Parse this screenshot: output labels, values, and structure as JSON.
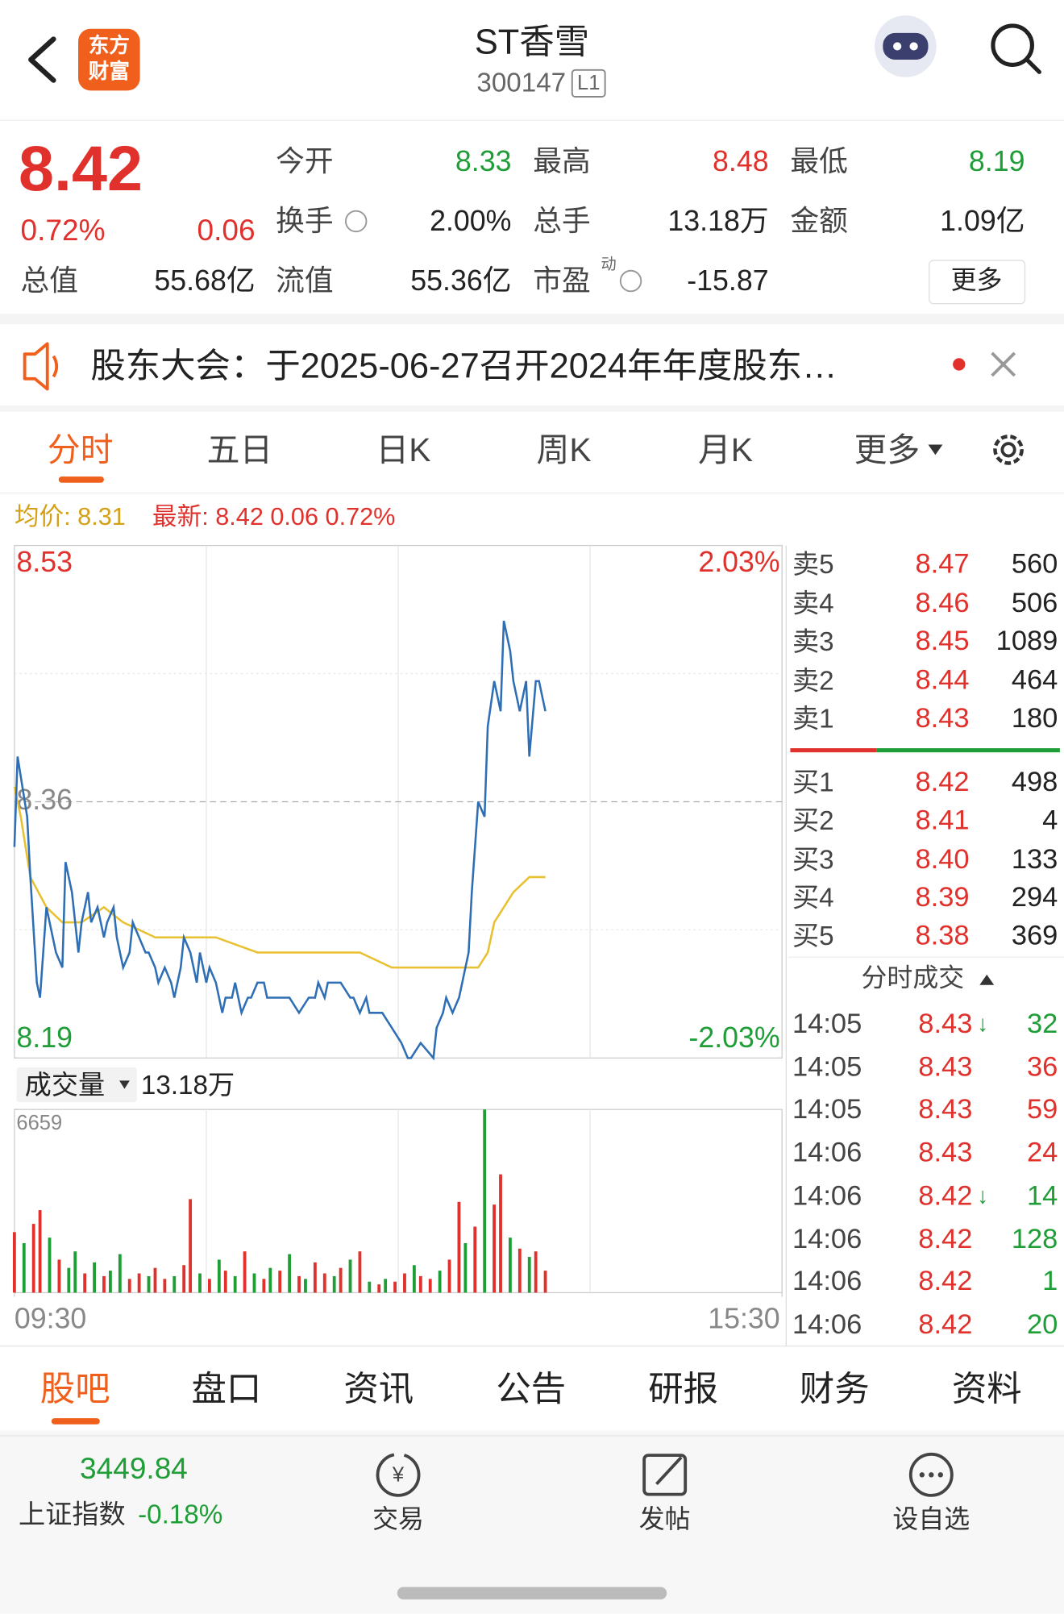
{
  "header": {
    "logo_line1": "东方",
    "logo_line2": "财富",
    "title": "ST香雪",
    "code": "300147",
    "level": "L1"
  },
  "quote": {
    "price": "8.42",
    "change_pct": "0.72%",
    "change": "0.06",
    "fields": [
      {
        "label": "今开",
        "value": "8.33"
      },
      {
        "label": "最高",
        "value": "8.48"
      },
      {
        "label": "最低",
        "value": "8.19"
      },
      {
        "label": "换手",
        "value": "2.00%"
      },
      {
        "label": "总手",
        "value": "13.18万"
      },
      {
        "label": "金额",
        "value": "1.09亿"
      },
      {
        "label": "总值",
        "value": "55.68亿"
      },
      {
        "label": "流值",
        "value": "55.36亿"
      },
      {
        "label": "市盈",
        "superscript": "动",
        "value": "-15.87"
      }
    ],
    "more_button": "更多"
  },
  "notice": {
    "text": "股东大会：于2025-06-27召开2024年年度股东…"
  },
  "tabs": [
    "分时",
    "五日",
    "日K",
    "周K",
    "月K",
    "更多"
  ],
  "chart_data": [
    {
      "type": "line",
      "annotations": [
        "均价: 8.31",
        "最新: 8.42 0.06 0.72%"
      ],
      "xlim": [
        0,
        240
      ],
      "ylim": [
        8.19,
        8.53
      ],
      "yticks": [
        8.19,
        8.36,
        8.53
      ],
      "y2lim": [
        -2.03,
        2.03
      ],
      "y2ticks": [
        {
          "value": -2.03,
          "label": "-2.03%"
        },
        {
          "value": 2.03,
          "label": "2.03%"
        }
      ],
      "series": [
        {
          "color": "#2e6eb5",
          "x": [
            0,
            1,
            4,
            5,
            7,
            8,
            10,
            12,
            13,
            15,
            16,
            18,
            20,
            21,
            23,
            24,
            26,
            28,
            29,
            31,
            32,
            34,
            36,
            37,
            41,
            42,
            44,
            45,
            47,
            49,
            50,
            52,
            53,
            55,
            57,
            58,
            60,
            61,
            63,
            65,
            66,
            68,
            69,
            71,
            73,
            74,
            76,
            78,
            79,
            82,
            86,
            89,
            92,
            94,
            95,
            97,
            98,
            102,
            105,
            106,
            108,
            110,
            111,
            115,
            118,
            121,
            123,
            124,
            127,
            131,
            132,
            134,
            135,
            137,
            139,
            140,
            142,
            143,
            145,
            147,
            148,
            150,
            152,
            153,
            155,
            156,
            158,
            160,
            161,
            163,
            164,
            166
          ],
          "values": [
            8.33,
            8.39,
            8.35,
            8.31,
            8.24,
            8.23,
            8.29,
            8.27,
            8.26,
            8.25,
            8.32,
            8.3,
            8.26,
            8.28,
            8.3,
            8.28,
            8.29,
            8.27,
            8.28,
            8.29,
            8.27,
            8.25,
            8.26,
            8.28,
            8.26,
            8.26,
            8.25,
            8.24,
            8.25,
            8.24,
            8.23,
            8.25,
            8.27,
            8.26,
            8.24,
            8.26,
            8.24,
            8.25,
            8.24,
            8.22,
            8.23,
            8.23,
            8.24,
            8.22,
            8.23,
            8.23,
            8.24,
            8.24,
            8.23,
            8.23,
            8.23,
            8.22,
            8.23,
            8.23,
            8.24,
            8.23,
            8.24,
            8.24,
            8.23,
            8.23,
            8.22,
            8.23,
            8.22,
            8.22,
            8.21,
            8.2,
            8.19,
            8.19,
            8.2,
            8.19,
            8.21,
            8.22,
            8.23,
            8.22,
            8.23,
            8.24,
            8.26,
            8.3,
            8.36,
            8.35,
            8.41,
            8.44,
            8.42,
            8.48,
            8.46,
            8.44,
            8.42,
            8.44,
            8.39,
            8.44,
            8.44,
            8.42
          ]
        },
        {
          "color": "#e8c030",
          "x": [
            0,
            2,
            5,
            10,
            15,
            21,
            28,
            34,
            44,
            53,
            63,
            76,
            92,
            108,
            118,
            124,
            131,
            140,
            145,
            148,
            150,
            153,
            156,
            161,
            166
          ],
          "values": [
            8.37,
            8.35,
            8.31,
            8.29,
            8.28,
            8.28,
            8.29,
            8.28,
            8.27,
            8.27,
            8.27,
            8.26,
            8.26,
            8.26,
            8.25,
            8.25,
            8.25,
            8.25,
            8.25,
            8.26,
            8.28,
            8.29,
            8.3,
            8.31,
            8.31
          ]
        }
      ]
    },
    {
      "type": "bar",
      "title": "成交量",
      "total": "13.18万",
      "xlim": [
        0,
        240
      ],
      "xticks": [
        {
          "value": 0,
          "label": "09:30"
        },
        {
          "value": 240,
          "label": "15:30"
        }
      ],
      "ylim": [
        0,
        6659
      ],
      "yticks": [
        6659
      ],
      "x": [
        0,
        3,
        6,
        8,
        11,
        14,
        17,
        19,
        22,
        25,
        28,
        30,
        33,
        36,
        39,
        42,
        44,
        47,
        50,
        53,
        55,
        58,
        61,
        64,
        66,
        69,
        72,
        75,
        78,
        80,
        83,
        86,
        89,
        91,
        94,
        97,
        100,
        102,
        105,
        108,
        111,
        114,
        116,
        119,
        122,
        125,
        127,
        130,
        133,
        136,
        139,
        141,
        144,
        147,
        150,
        152,
        155,
        158,
        161,
        163,
        166
      ],
      "values": [
        2200,
        1800,
        2500,
        3000,
        2000,
        1200,
        900,
        1500,
        700,
        1100,
        600,
        800,
        1400,
        500,
        700,
        600,
        900,
        500,
        600,
        1000,
        3400,
        700,
        500,
        1200,
        800,
        600,
        1500,
        700,
        500,
        900,
        800,
        1400,
        600,
        500,
        1100,
        700,
        600,
        900,
        1200,
        1500,
        400,
        300,
        500,
        400,
        700,
        1000,
        600,
        500,
        800,
        1200,
        3300,
        1800,
        2400,
        6659,
        3200,
        4300,
        2000,
        1600,
        1300,
        1500,
        800
      ],
      "colors": [
        "#e0312c",
        "#1f9e37",
        "#e0312c",
        "#e0312c",
        "#1f9e37",
        "#e0312c",
        "#1f9e37",
        "#1f9e37",
        "#e0312c",
        "#1f9e37",
        "#e0312c",
        "#1f9e37",
        "#1f9e37",
        "#e0312c",
        "#e0312c",
        "#1f9e37",
        "#e0312c",
        "#e0312c",
        "#1f9e37",
        "#e0312c",
        "#e0312c",
        "#1f9e37",
        "#e0312c",
        "#1f9e37",
        "#e0312c",
        "#1f9e37",
        "#e0312c",
        "#1f9e37",
        "#e0312c",
        "#1f9e37",
        "#e0312c",
        "#1f9e37",
        "#e0312c",
        "#1f9e37",
        "#e0312c",
        "#e0312c",
        "#1f9e37",
        "#e0312c",
        "#1f9e37",
        "#e0312c",
        "#1f9e37",
        "#e0312c",
        "#1f9e37",
        "#e0312c",
        "#e0312c",
        "#1f9e37",
        "#e0312c",
        "#e0312c",
        "#1f9e37",
        "#e0312c",
        "#e0312c",
        "#1f9e37",
        "#e0312c",
        "#1f9e37",
        "#e0312c",
        "#e0312c",
        "#1f9e37",
        "#e0312c",
        "#1f9e37",
        "#e0312c",
        "#e0312c"
      ]
    }
  ],
  "order_book": {
    "asks": [
      {
        "label": "卖5",
        "price": "8.47",
        "volume": "560"
      },
      {
        "label": "卖4",
        "price": "8.46",
        "volume": "506"
      },
      {
        "label": "卖3",
        "price": "8.45",
        "volume": "1089"
      },
      {
        "label": "卖2",
        "price": "8.44",
        "volume": "464"
      },
      {
        "label": "卖1",
        "price": "8.43",
        "volume": "180"
      }
    ],
    "bids": [
      {
        "label": "买1",
        "price": "8.42",
        "volume": "498"
      },
      {
        "label": "买2",
        "price": "8.41",
        "volume": "4"
      },
      {
        "label": "买3",
        "price": "8.40",
        "volume": "133"
      },
      {
        "label": "买4",
        "price": "8.39",
        "volume": "294"
      },
      {
        "label": "买5",
        "price": "8.38",
        "volume": "369"
      }
    ]
  },
  "trades": {
    "title": "分时成交",
    "rows": [
      {
        "time": "14:05",
        "price": "8.43",
        "arrow": "↓",
        "volume": "32",
        "volume_color": "#1f9e37"
      },
      {
        "time": "14:05",
        "price": "8.43",
        "volume": "36",
        "volume_color": "#e0312c"
      },
      {
        "time": "14:05",
        "price": "8.43",
        "volume": "59",
        "volume_color": "#e0312c"
      },
      {
        "time": "14:06",
        "price": "8.43",
        "volume": "24",
        "volume_color": "#e0312c"
      },
      {
        "time": "14:06",
        "price": "8.42",
        "arrow": "↓",
        "volume": "14",
        "volume_color": "#1f9e37"
      },
      {
        "time": "14:06",
        "price": "8.42",
        "volume": "128",
        "volume_color": "#1f9e37"
      },
      {
        "time": "14:06",
        "price": "8.42",
        "volume": "1",
        "volume_color": "#1f9e37"
      },
      {
        "time": "14:06",
        "price": "8.42",
        "volume": "20",
        "volume_color": "#1f9e37"
      }
    ]
  },
  "bottom_tabs": [
    "股吧",
    "盘口",
    "资讯",
    "公告",
    "研报",
    "财务",
    "资料"
  ],
  "footer": {
    "index_value": "3449.84",
    "index_name": "上证指数",
    "index_change": "-0.18%",
    "actions": [
      "交易",
      "发帖",
      "设自选"
    ]
  }
}
